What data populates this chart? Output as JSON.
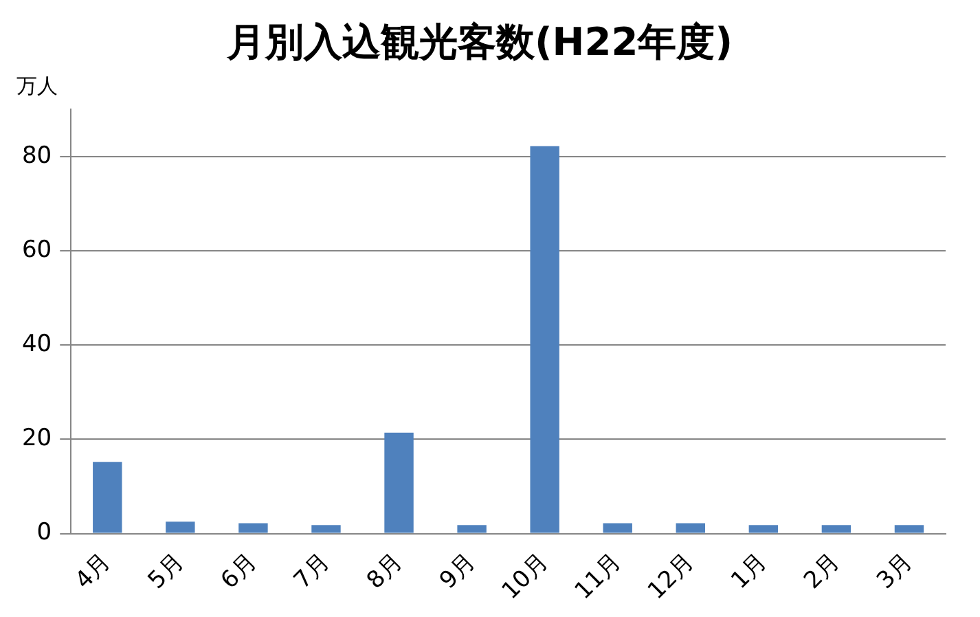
{
  "chart_data": {
    "type": "bar",
    "title": "月別入込観光客数(H22年度)",
    "ylabel": "万人",
    "categories": [
      "4月",
      "5月",
      "6月",
      "7月",
      "8月",
      "9月",
      "10月",
      "11月",
      "12月",
      "1月",
      "2月",
      "3月"
    ],
    "values": [
      15.2,
      2.5,
      2.2,
      1.8,
      21.4,
      1.8,
      82.2,
      2.2,
      2.2,
      1.8,
      1.8,
      1.8
    ],
    "color": "#4f81bd",
    "ylim": [
      0,
      90
    ],
    "yticks": [
      0,
      20,
      40,
      60,
      80
    ],
    "grid": "y",
    "legend": false
  }
}
